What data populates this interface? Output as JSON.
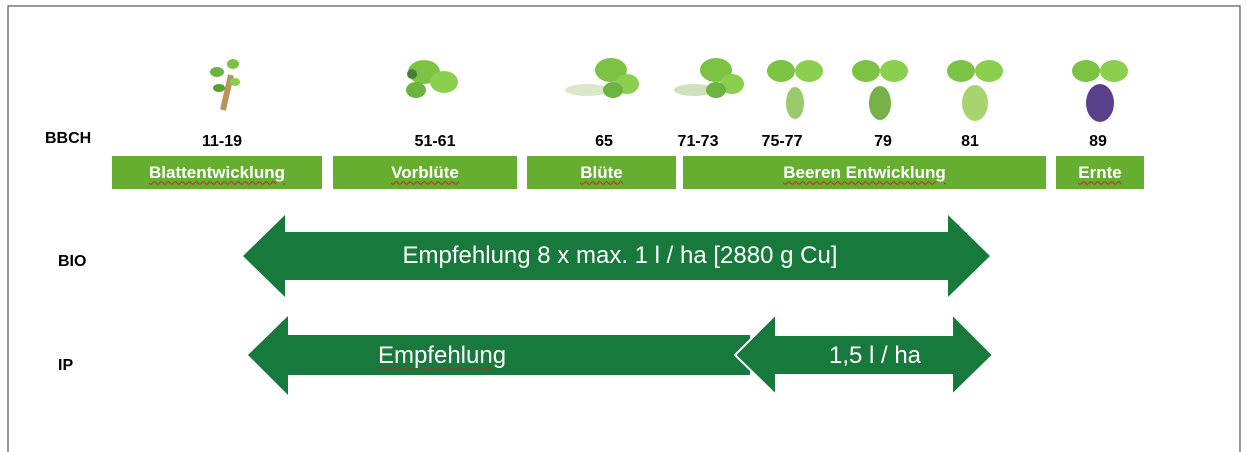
{
  "bbch_label": "BBCH",
  "stages": [
    "11-19",
    "51-61",
    "65",
    "71-73",
    "75-77",
    "79",
    "81",
    "89"
  ],
  "phases": [
    "Blattentwicklung",
    "Vorblüte",
    "Blüte",
    "Beeren Entwicklung",
    "Ernte"
  ],
  "rows": [
    {
      "label": "BIO",
      "arrows": [
        "Empfehlung 8 x max. 1 l / ha [2880 g Cu]"
      ]
    },
    {
      "label": "IP",
      "arrows": [
        "Empfehlung",
        "1,5 l / ha"
      ]
    }
  ]
}
